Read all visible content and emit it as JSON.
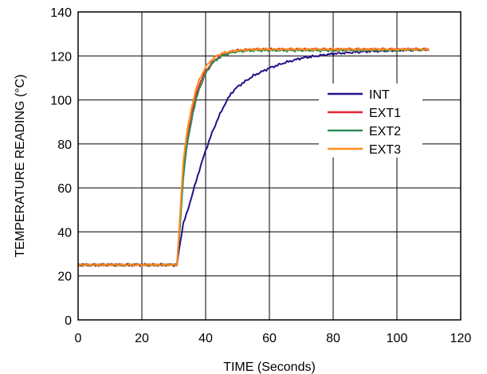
{
  "chart_data": {
    "type": "line",
    "title": "",
    "xlabel": "TIME (Seconds)",
    "ylabel": "TEMPERATURE READING (°C)",
    "xlim": [
      0,
      120
    ],
    "ylim": [
      0,
      140
    ],
    "xticks": [
      0,
      20,
      40,
      60,
      80,
      100,
      120
    ],
    "yticks": [
      0,
      20,
      40,
      60,
      80,
      100,
      120,
      140
    ],
    "grid": true,
    "legend_position": "right",
    "series": [
      {
        "name": "INT",
        "color": "#2a0f8a",
        "x": [
          0,
          10,
          20,
          31,
          32,
          33,
          34,
          35,
          36,
          37,
          38,
          40,
          42,
          44,
          46,
          48,
          50,
          55,
          60,
          65,
          70,
          75,
          80,
          85,
          90,
          95,
          100,
          105,
          110
        ],
        "y": [
          25,
          25,
          25,
          25,
          35,
          44,
          48,
          53,
          58,
          63,
          68,
          77,
          85,
          92,
          98,
          103,
          106,
          111,
          114.5,
          117,
          119,
          120,
          121,
          121.5,
          122,
          122.3,
          122.6,
          122.8,
          123
        ]
      },
      {
        "name": "EXT1",
        "color": "#e32636",
        "x": [
          0,
          10,
          20,
          31,
          32,
          33,
          34,
          35,
          36,
          37,
          38,
          40,
          42,
          44,
          46,
          48,
          50,
          55,
          60,
          70,
          80,
          90,
          100,
          110
        ],
        "y": [
          25,
          25,
          25,
          25,
          45,
          68,
          80,
          88,
          96,
          102,
          107,
          113,
          117,
          119.5,
          121,
          122,
          122.5,
          123,
          123,
          123,
          123,
          123,
          123,
          123
        ]
      },
      {
        "name": "EXT2",
        "color": "#2e8b57",
        "x": [
          0,
          10,
          20,
          31,
          32,
          33,
          34,
          35,
          36,
          37,
          38,
          40,
          42,
          44,
          46,
          48,
          50,
          55,
          60,
          70,
          80,
          90,
          100,
          110
        ],
        "y": [
          25,
          25,
          25,
          25,
          43,
          65,
          78,
          86,
          94,
          100,
          105,
          112,
          116.5,
          119,
          120.5,
          121.5,
          122,
          122.5,
          122.5,
          122.5,
          122.5,
          122.5,
          122.5,
          123
        ]
      },
      {
        "name": "EXT3",
        "color": "#ff8c1a",
        "x": [
          0,
          10,
          20,
          31,
          32,
          33,
          34,
          35,
          36,
          37,
          38,
          40,
          42,
          44,
          46,
          48,
          50,
          55,
          60,
          70,
          80,
          90,
          100,
          110
        ],
        "y": [
          25,
          25,
          25,
          25,
          48,
          72,
          84,
          92,
          99,
          105,
          109,
          115,
          118.5,
          120.5,
          121.5,
          122,
          122.5,
          123,
          123,
          123,
          123,
          123,
          123,
          123
        ]
      }
    ]
  }
}
